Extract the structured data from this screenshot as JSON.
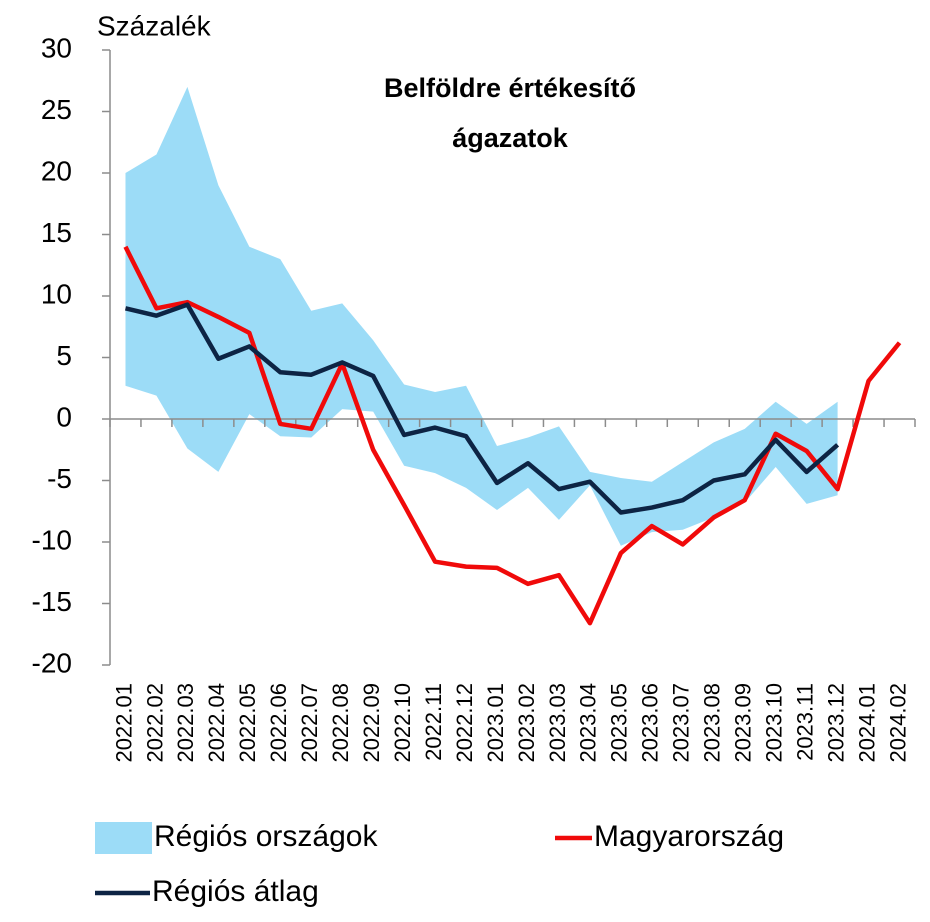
{
  "chart_data": {
    "type": "line",
    "title": [
      "Belföldre értékesítő",
      "ágazatok"
    ],
    "y_label": "Százalék",
    "categories": [
      "2022.01",
      "2022.02",
      "2022.03",
      "2022.04",
      "2022.05",
      "2022.06",
      "2022.07",
      "2022.08",
      "2022.09",
      "2022.10",
      "2022.11",
      "2022.12",
      "2023.01",
      "2023.02",
      "2023.03",
      "2023.04",
      "2023.05",
      "2023.06",
      "2023.07",
      "2023.08",
      "2023.09",
      "2023.10",
      "2023.11",
      "2023.12",
      "2024.01",
      "2024.02"
    ],
    "ylim": [
      -20,
      30
    ],
    "yticks": [
      -20,
      -15,
      -10,
      -5,
      0,
      5,
      10,
      15,
      20,
      25,
      30
    ],
    "legend": "bottom",
    "band": {
      "name": "Régiós országok",
      "color": "#9cdcf7",
      "upper": [
        20,
        21.5,
        27,
        19,
        14,
        13,
        8.8,
        9.4,
        6.4,
        2.8,
        2.2,
        2.7,
        -2.2,
        -1.5,
        -0.6,
        -4.3,
        -4.8,
        -5.1,
        -3.5,
        -1.9,
        -0.8,
        1.4,
        -0.4,
        1.4
      ],
      "lower": [
        2.7,
        1.9,
        -2.4,
        -4.3,
        0.4,
        -1.4,
        -1.5,
        0.8,
        0.6,
        -3.8,
        -4.4,
        -5.6,
        -7.4,
        -5.6,
        -8.2,
        -5.4,
        -10.3,
        -9.2,
        -9,
        -8,
        -6.8,
        -3.9,
        -6.9,
        -6.2
      ]
    },
    "series": [
      {
        "name": "Magyarország",
        "color": "#f00a0a",
        "values": [
          14,
          9,
          9.5,
          8.3,
          7,
          -0.4,
          -0.8,
          4.5,
          -2.5,
          -7,
          -11.6,
          -12,
          -12.1,
          -13.4,
          -12.7,
          -16.6,
          -10.9,
          -8.7,
          -10.2,
          -8,
          -6.6,
          -1.2,
          -2.6,
          -5.7,
          3.1,
          6.2
        ]
      },
      {
        "name": "Régiós átlag",
        "color": "#0d2444",
        "values": [
          9,
          8.4,
          9.3,
          4.9,
          5.9,
          3.8,
          3.6,
          4.6,
          3.5,
          -1.3,
          -0.7,
          -1.4,
          -5.2,
          -3.6,
          -5.7,
          -5.1,
          -7.6,
          -7.2,
          -6.6,
          -5,
          -4.5,
          -1.7,
          -4.3,
          -2.1,
          null,
          null
        ]
      }
    ]
  }
}
